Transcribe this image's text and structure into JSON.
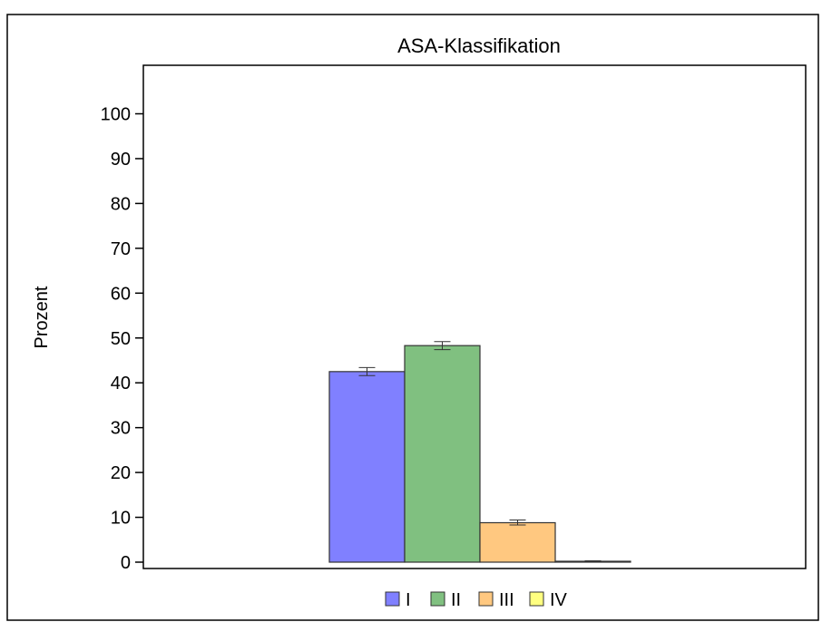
{
  "chart_data": {
    "type": "bar",
    "title": "ASA-Klassifikation",
    "xlabel": "",
    "ylabel": "Prozent",
    "ylim": [
      0,
      110
    ],
    "yticks": [
      0,
      10,
      20,
      30,
      40,
      50,
      60,
      70,
      80,
      90,
      100
    ],
    "grid": false,
    "legend_position": "bottom",
    "series": [
      {
        "name": "I",
        "value": 42.5,
        "err_low": 41.6,
        "err_high": 43.4,
        "color": "#8080FF"
      },
      {
        "name": "II",
        "value": 48.3,
        "err_low": 47.4,
        "err_high": 49.2,
        "color": "#80C080"
      },
      {
        "name": "III",
        "value": 8.8,
        "err_low": 8.3,
        "err_high": 9.4,
        "color": "#FFC880"
      },
      {
        "name": "IV",
        "value": 0.2,
        "err_low": 0.1,
        "err_high": 0.3,
        "color": "#FFFF80"
      }
    ]
  }
}
